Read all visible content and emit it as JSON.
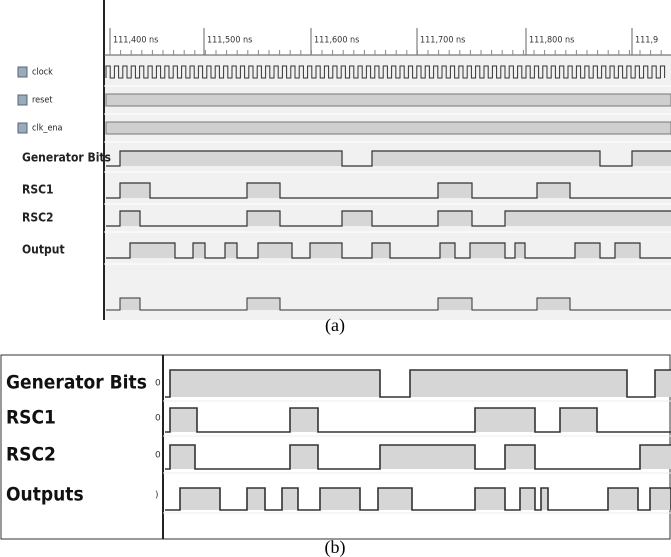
{
  "panel_a": {
    "time_ticks": [
      "111,400 ns",
      "111,500 ns",
      "111,600 ns",
      "111,700 ns",
      "111,800 ns",
      "111,9"
    ],
    "signals": [
      "clock",
      "reset",
      "clk_ena",
      "Generator Bits",
      "RSC1",
      "RSC2",
      "Output"
    ],
    "caption": "(a)"
  },
  "panel_b": {
    "signals": [
      "Generator Bits",
      "RSC1",
      "RSC2",
      "Outputs"
    ],
    "values": [
      "0",
      "0",
      "0",
      ")"
    ],
    "caption": "(b)"
  }
}
